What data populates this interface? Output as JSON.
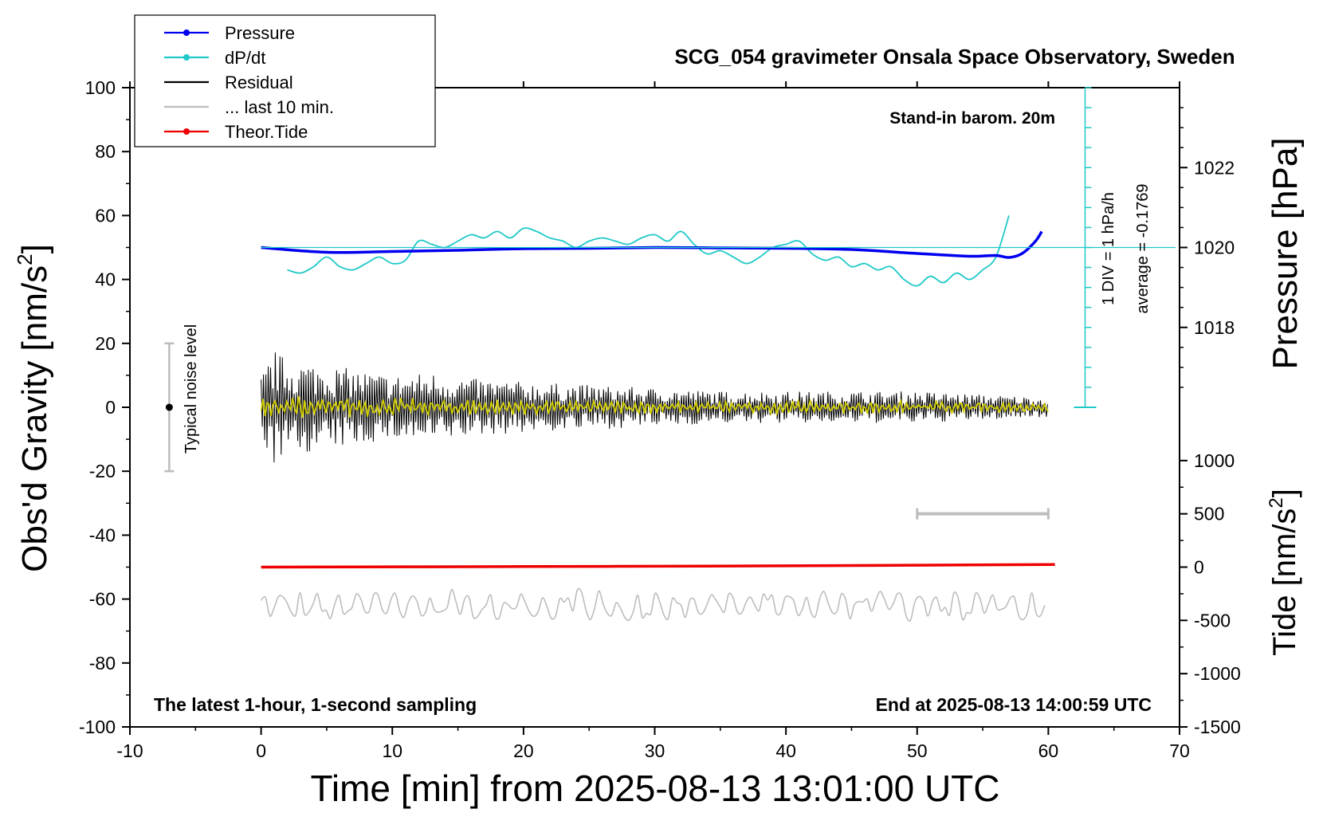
{
  "chart_data": {
    "type": "line",
    "title": "SCG_054 gravimeter Onsala Space Observatory, Sweden",
    "xlabel": "Time [min] from 2025-08-13 13:01:00 UTC",
    "ylabel_left": "Obs'd Gravity [nm/s",
    "ylabel_left_sup": "2",
    "ylabel_left_close": "]",
    "ylabel_right_pressure": "Pressure [hPa]",
    "ylabel_right_tide": "Tide [nm/s",
    "ylabel_right_tide_sup": "2",
    "ylabel_right_tide_close": "]",
    "xlim": [
      -10,
      70
    ],
    "ylim": [
      -100,
      100
    ],
    "pressure_lim": [
      1016,
      1024
    ],
    "tide_lim": [
      -1500,
      1500
    ],
    "x_ticks": [
      -10,
      0,
      10,
      20,
      30,
      40,
      50,
      60,
      70
    ],
    "y_ticks": [
      100,
      80,
      60,
      40,
      20,
      0,
      -20,
      -40,
      -60,
      -80,
      -100
    ],
    "pressure_ticks": [
      1022,
      1020,
      1018
    ],
    "tide_ticks": [
      1000,
      500,
      0,
      -500,
      -1000,
      -1500
    ],
    "annotations": {
      "barometer": "Stand-in barom. 20m",
      "latest": "The latest 1-hour, 1-second sampling",
      "end": "End at 2025-08-13 14:00:59 UTC",
      "noise": "Typical noise level",
      "div": "1 DIV = 1 hPa/h",
      "average": "average = -0.1769"
    },
    "legend": {
      "placement": "top-left",
      "entries": [
        {
          "name": "Pressure",
          "color": "#0000ee",
          "marker": true
        },
        {
          "name": "dP/dt",
          "color": "#20c8c8",
          "marker": true
        },
        {
          "name": "Residual",
          "color": "#000000",
          "marker": false
        },
        {
          "name": "... last 10 min.",
          "color": "#bdbdbd",
          "marker": false
        },
        {
          "name": "Theor.Tide",
          "color": "#ee0000",
          "marker": true
        }
      ]
    },
    "series": [
      {
        "name": "Pressure",
        "unit": "hPa",
        "color": "#0000ee",
        "x": [
          0,
          5,
          10,
          15,
          20,
          25,
          30,
          35,
          40,
          45,
          50,
          54,
          56,
          57,
          58,
          59,
          59.5
        ],
        "y": [
          1020.0,
          1019.88,
          1019.9,
          1019.93,
          1019.97,
          1019.98,
          1020.0,
          1019.99,
          1019.98,
          1019.95,
          1019.85,
          1019.78,
          1019.8,
          1019.75,
          1019.85,
          1020.15,
          1020.4
        ]
      },
      {
        "name": "dP/dt",
        "unit": "plotted in nm/s2",
        "color": "#20c8c8",
        "x": [
          2,
          3,
          4,
          5,
          6,
          7,
          8,
          9,
          10,
          11,
          12,
          13,
          14,
          15,
          16,
          17,
          18,
          19,
          20,
          21,
          22,
          23,
          24,
          25,
          26,
          27,
          28,
          29,
          30,
          31,
          32,
          33,
          34,
          35,
          36,
          37,
          38,
          39,
          40,
          41,
          42,
          43,
          44,
          45,
          46,
          47,
          48,
          49,
          50,
          51,
          52,
          53,
          54,
          55,
          56,
          57
        ],
        "y": [
          43,
          42,
          44,
          47,
          44,
          43,
          45,
          47,
          45,
          46,
          52,
          51,
          50,
          52,
          54,
          53,
          55,
          53,
          56,
          55,
          53,
          52,
          50,
          52,
          53,
          52,
          51,
          53,
          54,
          52,
          55,
          51,
          48,
          49,
          47,
          45,
          47,
          50,
          51,
          52,
          48,
          46,
          47,
          44,
          45,
          43,
          44,
          40,
          38,
          41,
          39,
          42,
          40,
          43,
          47,
          60
        ]
      },
      {
        "name": "Residual",
        "unit": "nm/s2",
        "color": "#000000",
        "x": [
          0,
          1,
          2,
          4,
          7,
          10,
          13,
          16,
          20,
          25,
          30,
          35,
          40,
          45,
          50,
          55,
          60
        ],
        "amplitude": [
          10,
          18,
          15,
          14,
          12,
          10,
          11,
          9,
          8,
          7,
          6,
          5,
          5,
          5,
          5,
          4,
          3
        ]
      },
      {
        "name": "Residual (smoothed)",
        "unit": "nm/s2",
        "color": "#d4d000",
        "x": [
          0,
          10,
          20,
          30,
          40,
          50,
          60
        ],
        "amplitude": [
          4,
          3,
          2.5,
          2,
          2,
          2,
          1.5
        ]
      },
      {
        "name": "... last 10 min.",
        "unit": "nm/s2 (offset)",
        "color": "#bdbdbd",
        "x": [
          0,
          60
        ],
        "center": -62,
        "amplitude": [
          5,
          5
        ]
      },
      {
        "name": "Theor.Tide",
        "unit": "nm/s2",
        "color": "#ee0000",
        "x": [
          0,
          20,
          40,
          50,
          60.5
        ],
        "y": [
          0,
          5,
          12,
          18,
          25
        ]
      }
    ],
    "noise_bar": {
      "x": -7,
      "range": [
        -20,
        20
      ],
      "center": 0
    },
    "last10_bar": {
      "x_range": [
        50,
        60
      ],
      "tide_value": 500
    }
  }
}
